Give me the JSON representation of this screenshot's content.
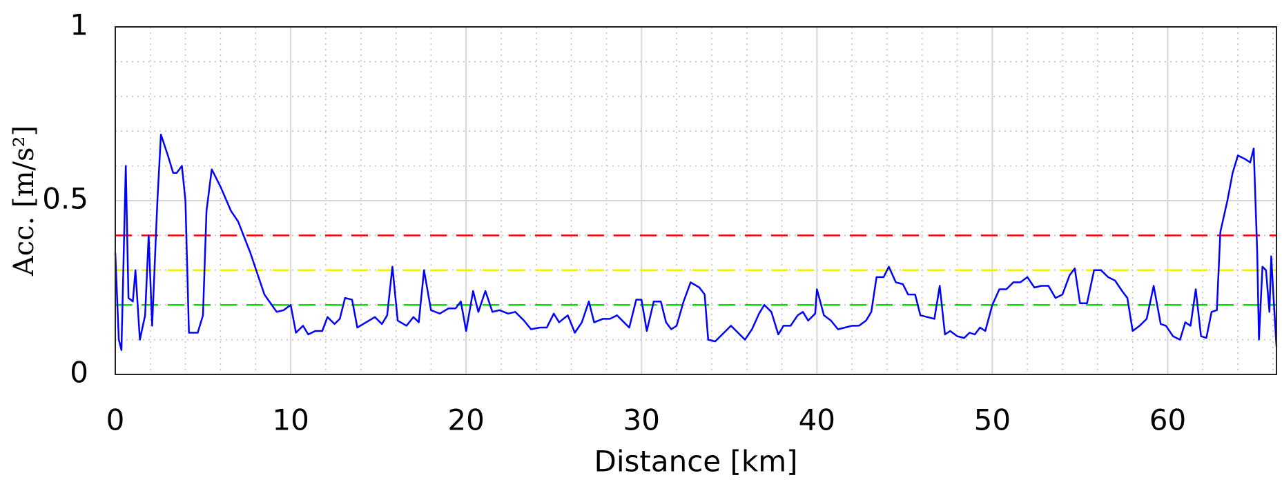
{
  "chart_data": {
    "type": "line",
    "xlabel": "Distance [km]",
    "ylabel": "Acc. [m/s²]",
    "xlim": [
      0,
      66.2
    ],
    "ylim": [
      0,
      1
    ],
    "xticks": [
      0,
      10,
      20,
      30,
      40,
      50,
      60
    ],
    "yticks": [
      0,
      0.5,
      1
    ],
    "grid": true,
    "minor_grid": true,
    "color": "#0000ff",
    "hlines": [
      {
        "value": 0.4,
        "color": "#ff0000"
      },
      {
        "value": 0.3,
        "color": "#f0f000"
      },
      {
        "value": 0.2,
        "color": "#00e000"
      }
    ],
    "x": [
      0,
      0.2,
      0.35,
      0.6,
      0.75,
      1.0,
      1.15,
      1.4,
      1.7,
      1.9,
      2.1,
      2.4,
      2.6,
      3.0,
      3.3,
      3.5,
      3.8,
      4.0,
      4.2,
      4.7,
      5.0,
      5.2,
      5.5,
      6.0,
      6.6,
      7.0,
      7.7,
      8.5,
      9.2,
      9.6,
      10.0,
      10.3,
      10.7,
      11.0,
      11.4,
      11.8,
      12.1,
      12.5,
      12.8,
      13.1,
      13.5,
      13.8,
      14.3,
      14.8,
      15.2,
      15.5,
      15.8,
      16.1,
      16.6,
      17.0,
      17.3,
      17.6,
      18.0,
      18.5,
      19.0,
      19.4,
      19.7,
      20.0,
      20.4,
      20.7,
      21.1,
      21.5,
      21.9,
      22.4,
      22.8,
      23.3,
      23.7,
      24.2,
      24.6,
      25.0,
      25.3,
      25.8,
      26.2,
      26.6,
      27.0,
      27.3,
      27.8,
      28.2,
      28.6,
      29.0,
      29.3,
      29.7,
      30.0,
      30.3,
      30.7,
      31.1,
      31.4,
      31.7,
      32.0,
      32.4,
      32.8,
      33.3,
      33.6,
      33.8,
      34.2,
      34.7,
      35.1,
      35.5,
      35.9,
      36.3,
      36.7,
      37.0,
      37.4,
      37.8,
      38.1,
      38.5,
      38.9,
      39.2,
      39.5,
      39.9,
      40.0,
      40.4,
      40.8,
      41.2,
      41.6,
      42.0,
      42.4,
      42.8,
      43.1,
      43.4,
      43.8,
      44.1,
      44.5,
      44.9,
      45.2,
      45.6,
      45.9,
      46.3,
      46.7,
      47.0,
      47.3,
      47.6,
      48.0,
      48.4,
      48.7,
      49.0,
      49.3,
      49.6,
      50.0,
      50.4,
      50.8,
      51.2,
      51.6,
      52.0,
      52.4,
      52.8,
      53.2,
      53.6,
      54.0,
      54.4,
      54.7,
      55.0,
      55.4,
      55.8,
      56.2,
      56.6,
      57.0,
      57.4,
      57.7,
      58.0,
      58.4,
      58.8,
      59.2,
      59.6,
      59.9,
      60.3,
      60.7,
      61.0,
      61.3,
      61.6,
      61.9,
      62.2,
      62.5,
      62.8,
      63.0,
      63.4,
      63.7,
      64.0,
      64.4,
      64.7,
      64.9,
      65.1,
      65.2,
      65.4,
      65.6,
      65.8,
      65.9,
      66.0,
      66.2
    ],
    "values": [
      0.35,
      0.1,
      0.07,
      0.6,
      0.22,
      0.21,
      0.3,
      0.1,
      0.17,
      0.4,
      0.14,
      0.5,
      0.69,
      0.63,
      0.58,
      0.58,
      0.6,
      0.5,
      0.12,
      0.12,
      0.17,
      0.47,
      0.59,
      0.54,
      0.47,
      0.44,
      0.35,
      0.23,
      0.18,
      0.185,
      0.2,
      0.12,
      0.14,
      0.115,
      0.125,
      0.125,
      0.165,
      0.145,
      0.16,
      0.22,
      0.215,
      0.135,
      0.15,
      0.165,
      0.145,
      0.17,
      0.31,
      0.155,
      0.14,
      0.165,
      0.15,
      0.3,
      0.185,
      0.175,
      0.19,
      0.19,
      0.21,
      0.125,
      0.24,
      0.18,
      0.24,
      0.18,
      0.185,
      0.175,
      0.18,
      0.155,
      0.13,
      0.135,
      0.135,
      0.175,
      0.15,
      0.17,
      0.12,
      0.15,
      0.21,
      0.15,
      0.16,
      0.16,
      0.17,
      0.15,
      0.135,
      0.215,
      0.215,
      0.125,
      0.21,
      0.21,
      0.15,
      0.13,
      0.14,
      0.21,
      0.265,
      0.25,
      0.23,
      0.1,
      0.095,
      0.12,
      0.14,
      0.12,
      0.1,
      0.13,
      0.175,
      0.2,
      0.18,
      0.115,
      0.14,
      0.14,
      0.17,
      0.18,
      0.155,
      0.175,
      0.245,
      0.17,
      0.155,
      0.13,
      0.135,
      0.14,
      0.14,
      0.155,
      0.18,
      0.28,
      0.28,
      0.31,
      0.265,
      0.26,
      0.23,
      0.23,
      0.17,
      0.165,
      0.16,
      0.255,
      0.115,
      0.125,
      0.11,
      0.105,
      0.12,
      0.115,
      0.135,
      0.125,
      0.2,
      0.245,
      0.245,
      0.265,
      0.265,
      0.28,
      0.25,
      0.255,
      0.255,
      0.22,
      0.23,
      0.285,
      0.305,
      0.205,
      0.205,
      0.3,
      0.3,
      0.28,
      0.27,
      0.24,
      0.22,
      0.125,
      0.14,
      0.16,
      0.255,
      0.145,
      0.14,
      0.11,
      0.1,
      0.15,
      0.14,
      0.245,
      0.11,
      0.105,
      0.18,
      0.185,
      0.41,
      0.5,
      0.58,
      0.63,
      0.62,
      0.61,
      0.65,
      0.35,
      0.1,
      0.31,
      0.3,
      0.18,
      0.34,
      0.25,
      0.08
    ]
  }
}
